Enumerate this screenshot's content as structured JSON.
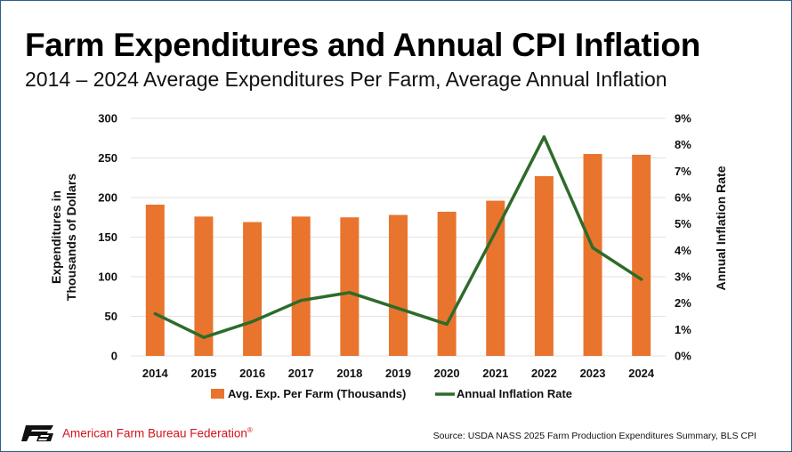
{
  "header": {
    "title": "Farm Expenditures and Annual CPI Inflation",
    "subtitle": "2014 – 2024 Average Expenditures Per Farm, Average Annual Inflation"
  },
  "footer": {
    "org_name": "American Farm Bureau Federation",
    "org_mark": "®",
    "source": "Source: USDA NASS 2025 Farm Production Expenditures Summary, BLS CPI"
  },
  "colors": {
    "bar": "#e8742e",
    "line": "#2e6b2a",
    "grid": "#e2e2e2",
    "brand_red": "#d4141c"
  },
  "chart_data": {
    "type": "bar",
    "title": "Farm Expenditures and Annual CPI Inflation",
    "categories": [
      "2014",
      "2015",
      "2016",
      "2017",
      "2018",
      "2019",
      "2020",
      "2021",
      "2022",
      "2023",
      "2024"
    ],
    "series": [
      {
        "name": "Avg. Exp. Per Farm (Thousands)",
        "type": "bar",
        "axis": "left",
        "values": [
          191,
          176,
          169,
          176,
          175,
          178,
          182,
          196,
          227,
          255,
          254
        ]
      },
      {
        "name": "Annual Inflation Rate",
        "type": "line",
        "axis": "right",
        "values": [
          1.6,
          0.7,
          1.3,
          2.1,
          2.4,
          1.8,
          1.2,
          4.7,
          8.3,
          4.1,
          2.9
        ]
      }
    ],
    "ylabel": "Expenditures in Thousands of Dollars",
    "ylabel_lines": [
      "Expenditures in",
      "Thousands of Dollars"
    ],
    "y2label": "Annual Inflation Rate",
    "ylim": [
      0,
      300
    ],
    "y2lim": [
      0,
      9
    ],
    "yticks": [
      0,
      50,
      100,
      150,
      200,
      250,
      300
    ],
    "yticks_labels": [
      "0",
      "50",
      "100",
      "150",
      "200",
      "250",
      "300"
    ],
    "y2ticks": [
      0,
      1,
      2,
      3,
      4,
      5,
      6,
      7,
      8,
      9
    ],
    "y2ticks_labels": [
      "0%",
      "1%",
      "2%",
      "3%",
      "4%",
      "5%",
      "6%",
      "7%",
      "8%",
      "9%"
    ],
    "grid": true,
    "legend": "bottom"
  }
}
